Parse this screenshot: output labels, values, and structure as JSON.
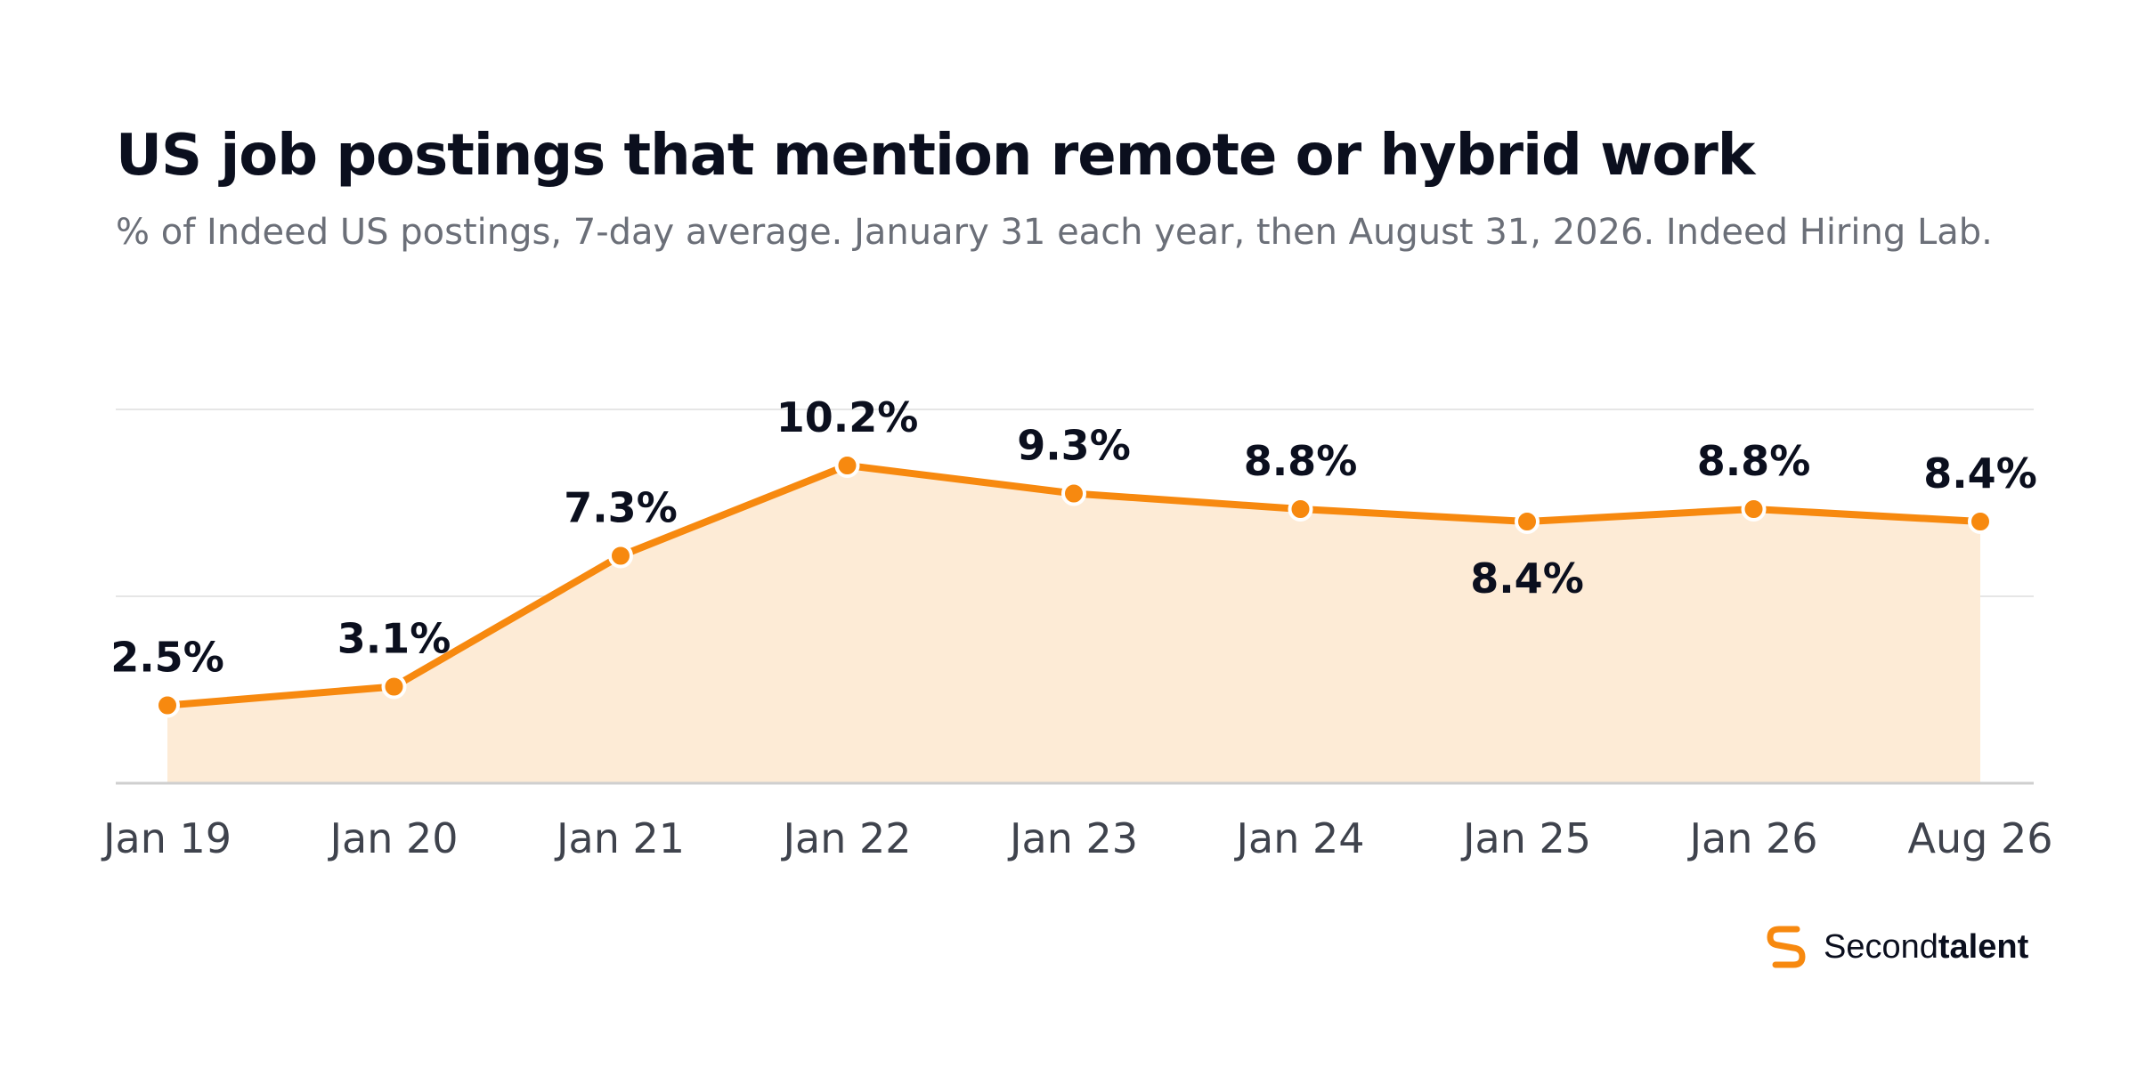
{
  "header": {
    "title": "US job postings that mention remote or hybrid work",
    "subtitle": "% of Indeed US postings, 7-day average. January 31 each year, then August 31, 2026. Indeed Hiring Lab."
  },
  "brand": {
    "name_regular": "Second",
    "name_bold": "talent",
    "icon": "secondtalent-logo-icon"
  },
  "colors": {
    "line": "#f7890f",
    "area": "#fdebd6",
    "grid": "#e6e6e6",
    "axis": "#cfcfcf",
    "label": "#0b0f1e",
    "tick": "#3f434d"
  },
  "chart_data": {
    "type": "area",
    "title": "US job postings that mention remote or hybrid work",
    "xlabel": "",
    "ylabel": "",
    "categories": [
      "Jan 19",
      "Jan 20",
      "Jan 21",
      "Jan 22",
      "Jan 23",
      "Jan 24",
      "Jan 25",
      "Jan 26",
      "Aug 26"
    ],
    "values": [
      2.5,
      3.1,
      7.3,
      10.2,
      9.3,
      8.8,
      8.4,
      8.8,
      8.4
    ],
    "labels": [
      "2.5%",
      "3.1%",
      "7.3%",
      "10.2%",
      "9.3%",
      "8.8%",
      "8.4%",
      "8.8%",
      "8.4%"
    ],
    "label_position": [
      "above",
      "above",
      "above",
      "above",
      "above",
      "above",
      "below",
      "above",
      "above"
    ],
    "ylim": [
      0,
      12
    ],
    "grid": true,
    "gridlines": [
      6,
      12
    ]
  }
}
